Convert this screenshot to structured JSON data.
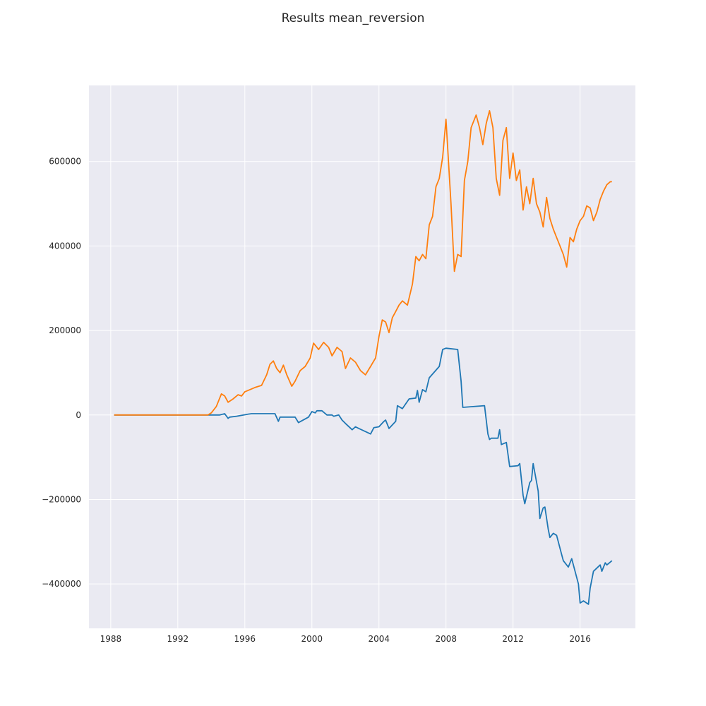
{
  "chart_data": {
    "type": "line",
    "title": "Results mean_reversion",
    "xlabel": "",
    "ylabel": "",
    "xlim": [
      1986.7,
      2019.3
    ],
    "ylim": [
      -505000,
      780000
    ],
    "x_ticks": [
      1988,
      1992,
      1996,
      2000,
      2004,
      2008,
      2012,
      2016
    ],
    "x_tick_labels": [
      "1988",
      "1992",
      "1996",
      "2000",
      "2004",
      "2008",
      "2012",
      "2016"
    ],
    "y_ticks": [
      -400000,
      -200000,
      0,
      200000,
      400000,
      600000
    ],
    "y_tick_labels": [
      "−400000",
      "−200000",
      "0",
      "200000",
      "400000",
      "600000"
    ],
    "grid": true,
    "legend": "none",
    "series": [
      {
        "color": "#1f77b4",
        "x": [
          1988.2,
          1993.8,
          1994.5,
          1994.8,
          1995.0,
          1995.1,
          1995.5,
          1996.2,
          1996.4,
          1997.8,
          1998.0,
          1998.1,
          1999.0,
          1999.2,
          1999.8,
          2000.0,
          2000.2,
          2000.3,
          2000.6,
          2000.9,
          2001.2,
          2001.3,
          2001.6,
          2001.8,
          2002.0,
          2002.4,
          2002.6,
          2002.8,
          2003.5,
          2003.7,
          2004.0,
          2004.3,
          2004.4,
          2004.6,
          2005.0,
          2005.1,
          2005.4,
          2005.8,
          2006.2,
          2006.3,
          2006.4,
          2006.6,
          2006.8,
          2007.0,
          2007.6,
          2007.8,
          2008.0,
          2008.7,
          2008.9,
          2009.0,
          2010.3,
          2010.5,
          2010.6,
          2010.7,
          2011.1,
          2011.2,
          2011.3,
          2011.6,
          2011.8,
          2012.3,
          2012.4,
          2012.6,
          2012.7,
          2013.0,
          2013.1,
          2013.2,
          2013.5,
          2013.6,
          2013.8,
          2013.9,
          2014.1,
          2014.2,
          2014.4,
          2014.6,
          2014.9,
          2015.0,
          2015.3,
          2015.5,
          2015.9,
          2016.0,
          2016.2,
          2016.5,
          2016.6,
          2016.8,
          2017.2,
          2017.3,
          2017.5,
          2017.6,
          2017.9
        ],
        "y": [
          0,
          0,
          0,
          3000,
          -8000,
          -5000,
          -3000,
          2000,
          3000,
          3000,
          -15000,
          -5000,
          -5000,
          -18000,
          -5000,
          8000,
          5000,
          10000,
          10000,
          0,
          0,
          -3000,
          0,
          -12000,
          -20000,
          -35000,
          -28000,
          -32000,
          -45000,
          -30000,
          -28000,
          -15000,
          -12000,
          -32000,
          -15000,
          22000,
          15000,
          38000,
          40000,
          58000,
          30000,
          60000,
          55000,
          88000,
          115000,
          155000,
          158000,
          155000,
          80000,
          18000,
          22000,
          -45000,
          -58000,
          -55000,
          -55000,
          -35000,
          -70000,
          -65000,
          -122000,
          -120000,
          -115000,
          -190000,
          -210000,
          -160000,
          -155000,
          -115000,
          -180000,
          -245000,
          -220000,
          -218000,
          -270000,
          -290000,
          -280000,
          -285000,
          -330000,
          -345000,
          -360000,
          -340000,
          -400000,
          -445000,
          -440000,
          -448000,
          -410000,
          -370000,
          -355000,
          -370000,
          -350000,
          -355000,
          -345000
        ]
      },
      {
        "color": "#ff7f0e",
        "x": [
          1988.2,
          1993.0,
          1993.8,
          1994.0,
          1994.3,
          1994.6,
          1994.8,
          1995.0,
          1995.3,
          1995.6,
          1995.8,
          1996.0,
          1996.3,
          1996.6,
          1997.0,
          1997.3,
          1997.5,
          1997.7,
          1997.9,
          1998.1,
          1998.3,
          1998.5,
          1998.8,
          1999.0,
          1999.3,
          1999.6,
          1999.9,
          2000.1,
          2000.4,
          2000.7,
          2001.0,
          2001.2,
          2001.5,
          2001.8,
          2002.0,
          2002.3,
          2002.6,
          2002.9,
          2003.2,
          2003.5,
          2003.8,
          2004.0,
          2004.2,
          2004.4,
          2004.6,
          2004.8,
          2005.0,
          2005.2,
          2005.4,
          2005.7,
          2006.0,
          2006.2,
          2006.4,
          2006.6,
          2006.8,
          2007.0,
          2007.2,
          2007.4,
          2007.6,
          2007.8,
          2008.0,
          2008.3,
          2008.5,
          2008.7,
          2008.9,
          2009.1,
          2009.3,
          2009.5,
          2009.8,
          2010.0,
          2010.2,
          2010.4,
          2010.6,
          2010.8,
          2011.0,
          2011.2,
          2011.4,
          2011.6,
          2011.8,
          2012.0,
          2012.2,
          2012.4,
          2012.6,
          2012.8,
          2013.0,
          2013.2,
          2013.4,
          2013.6,
          2013.8,
          2014.0,
          2014.2,
          2014.4,
          2014.6,
          2014.8,
          2015.0,
          2015.2,
          2015.4,
          2015.6,
          2015.8,
          2016.0,
          2016.2,
          2016.4,
          2016.6,
          2016.8,
          2017.0,
          2017.2,
          2017.4,
          2017.6,
          2017.8,
          2017.9
        ],
        "y": [
          0,
          0,
          0,
          5000,
          20000,
          50000,
          45000,
          30000,
          38000,
          48000,
          45000,
          55000,
          60000,
          65000,
          70000,
          95000,
          120000,
          128000,
          110000,
          100000,
          118000,
          95000,
          68000,
          80000,
          105000,
          115000,
          135000,
          170000,
          155000,
          172000,
          160000,
          140000,
          160000,
          150000,
          110000,
          135000,
          125000,
          105000,
          95000,
          115000,
          135000,
          185000,
          225000,
          220000,
          195000,
          230000,
          245000,
          260000,
          270000,
          260000,
          310000,
          375000,
          365000,
          380000,
          370000,
          450000,
          470000,
          540000,
          560000,
          610000,
          700000,
          500000,
          340000,
          380000,
          375000,
          555000,
          600000,
          680000,
          710000,
          680000,
          640000,
          690000,
          720000,
          680000,
          560000,
          520000,
          650000,
          680000,
          560000,
          620000,
          555000,
          580000,
          485000,
          540000,
          500000,
          560000,
          500000,
          480000,
          445000,
          515000,
          465000,
          440000,
          420000,
          400000,
          380000,
          350000,
          420000,
          410000,
          440000,
          460000,
          470000,
          495000,
          490000,
          460000,
          480000,
          510000,
          530000,
          545000,
          552000,
          552000
        ]
      }
    ]
  }
}
